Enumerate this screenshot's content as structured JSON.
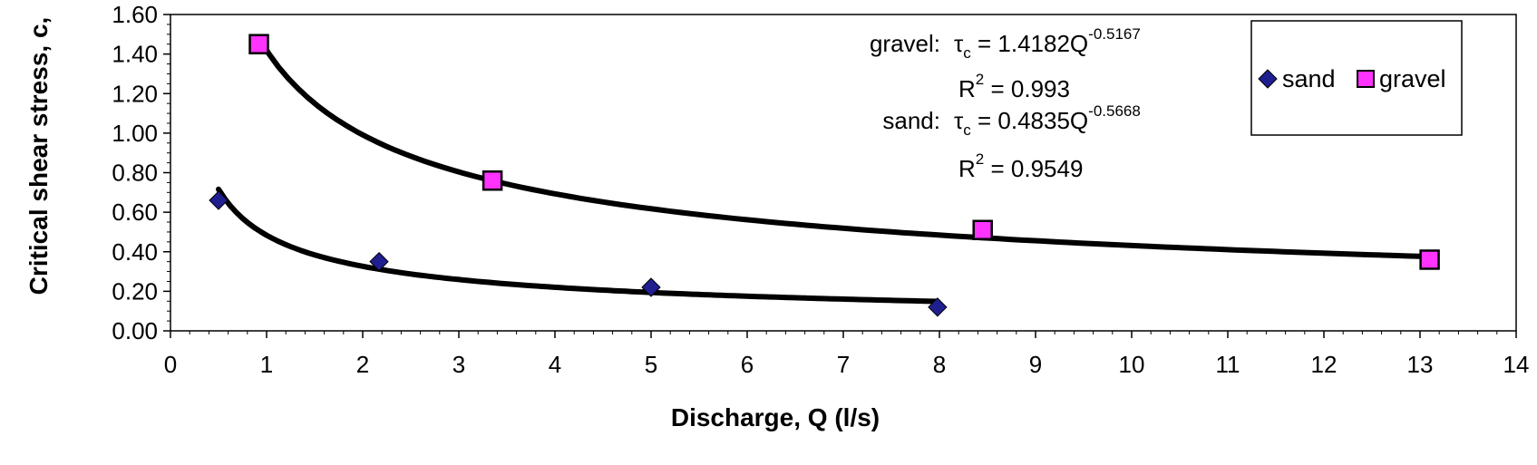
{
  "chart_data": {
    "type": "scatter",
    "xlabel": "Discharge, Q (l/s)",
    "ylabel": "Critical shear stress,  c,",
    "xlim": [
      0,
      14
    ],
    "ylim": [
      0,
      1.6
    ],
    "x_ticks": [
      "0",
      "1",
      "2",
      "3",
      "4",
      "5",
      "6",
      "7",
      "8",
      "9",
      "10",
      "11",
      "12",
      "13",
      "14"
    ],
    "y_ticks": [
      "0.00",
      "0.20",
      "0.40",
      "0.60",
      "0.80",
      "1.00",
      "1.20",
      "1.40",
      "1.60"
    ],
    "grid": false,
    "legend_position": "top-right",
    "series": [
      {
        "name": "sand",
        "marker": "diamond",
        "color": "#1F1F8F",
        "points": [
          [
            0.5,
            0.66
          ],
          [
            2.17,
            0.35
          ],
          [
            5.0,
            0.22
          ],
          [
            7.98,
            0.12
          ]
        ],
        "trendline": {
          "type": "power",
          "a": 0.4835,
          "b": -0.5668,
          "x_range": [
            0.5,
            7.98
          ]
        }
      },
      {
        "name": "gravel",
        "marker": "square",
        "color": "#FF33FF",
        "points": [
          [
            0.92,
            1.45
          ],
          [
            3.35,
            0.76
          ],
          [
            8.45,
            0.51
          ],
          [
            13.1,
            0.36
          ]
        ],
        "trendline": {
          "type": "power",
          "a": 1.4182,
          "b": -0.5167,
          "x_range": [
            0.92,
            13.1
          ]
        }
      }
    ],
    "annotations": {
      "gravel_eq": {
        "prefix": "gravel:",
        "tau": "τ",
        "sub": "c",
        "rest": " = 1.4182Q",
        "exp": "-0.5167"
      },
      "gravel_r2": {
        "r": "R",
        "exp": "2",
        "rest": " = 0.993"
      },
      "sand_eq": {
        "prefix": "sand:",
        "tau": "τ",
        "sub": "c",
        "rest": " = 0.4835Q",
        "exp": "-0.5668"
      },
      "sand_r2": {
        "r": "R",
        "exp": "2",
        "rest": " = 0.9549"
      }
    }
  }
}
